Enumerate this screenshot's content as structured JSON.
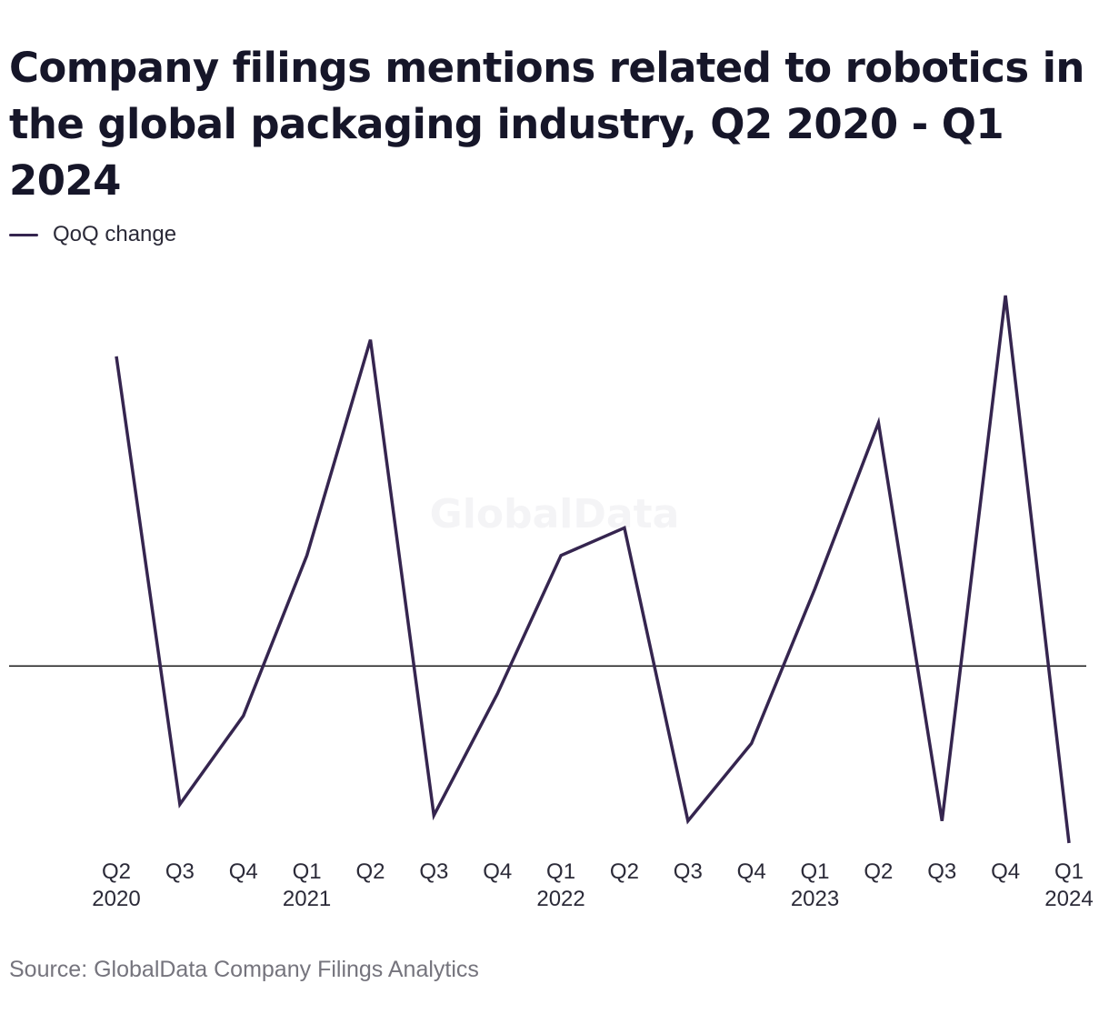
{
  "title": "Company filings mentions related to robotics in the global packaging industry, Q2 2020 - Q1 2024",
  "watermark": "GlobalData",
  "source": "Source: GlobalData Company Filings Analytics",
  "colors": {
    "line": "#35254f",
    "zero_line": "#111111",
    "text": "#2b2a38",
    "source": "#75747d"
  },
  "chart_data": {
    "type": "line",
    "title": "Company filings mentions related to robotics in the global packaging industry, Q2 2020 - Q1 2024",
    "xlabel": "",
    "ylabel": "",
    "grid": false,
    "legend_position": "top-left",
    "zero_line": true,
    "categories": [
      "Q2 2020",
      "Q3 2020",
      "Q4 2020",
      "Q1 2021",
      "Q2 2021",
      "Q3 2021",
      "Q4 2021",
      "Q1 2022",
      "Q2 2022",
      "Q3 2022",
      "Q4 2022",
      "Q1 2023",
      "Q2 2023",
      "Q3 2023",
      "Q4 2023",
      "Q1 2024"
    ],
    "tick_labels": [
      {
        "line1": "Q2",
        "line2": "2020"
      },
      {
        "line1": "Q3",
        "line2": ""
      },
      {
        "line1": "Q4",
        "line2": ""
      },
      {
        "line1": "Q1",
        "line2": "2021"
      },
      {
        "line1": "Q2",
        "line2": ""
      },
      {
        "line1": "Q3",
        "line2": ""
      },
      {
        "line1": "Q4",
        "line2": ""
      },
      {
        "line1": "Q1",
        "line2": "2022"
      },
      {
        "line1": "Q2",
        "line2": ""
      },
      {
        "line1": "Q3",
        "line2": ""
      },
      {
        "line1": "Q4",
        "line2": ""
      },
      {
        "line1": "Q1",
        "line2": "2023"
      },
      {
        "line1": "Q2",
        "line2": ""
      },
      {
        "line1": "Q3",
        "line2": ""
      },
      {
        "line1": "Q4",
        "line2": ""
      },
      {
        "line1": "Q1",
        "line2": "2024"
      }
    ],
    "series": [
      {
        "name": "QoQ change",
        "color": "#35254f",
        "values": [
          0.56,
          -0.25,
          -0.09,
          0.2,
          0.59,
          -0.27,
          -0.05,
          0.2,
          0.25,
          -0.28,
          -0.14,
          0.14,
          0.44,
          -0.28,
          0.67,
          -0.32
        ]
      }
    ],
    "ylim": [
      -0.32,
      0.67
    ]
  }
}
